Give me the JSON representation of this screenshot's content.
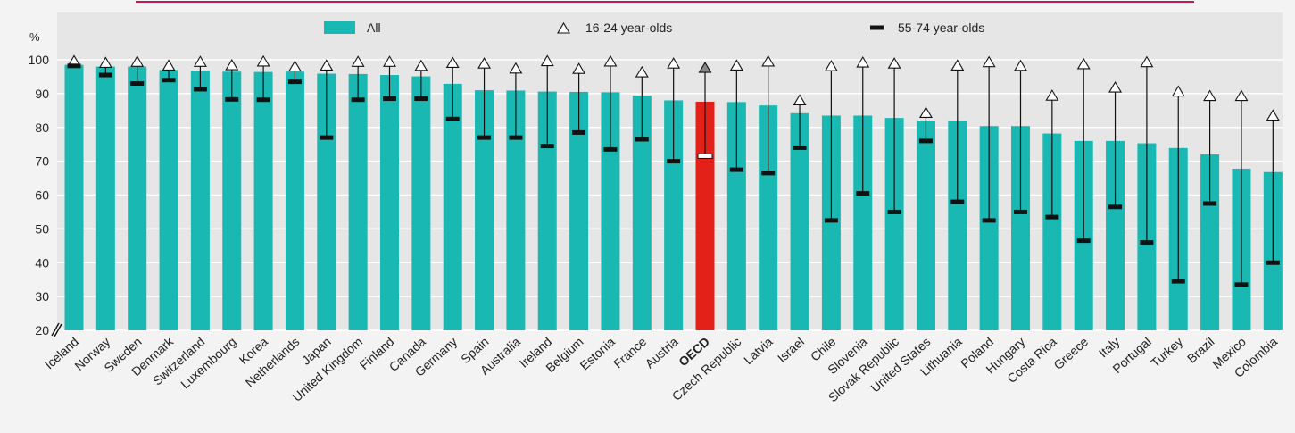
{
  "colors": {
    "all": "#1ab8b2",
    "oecd": "#e32119",
    "whisker": "#111111",
    "background": "#f3f3f3",
    "legend_band": "#e6e6e6",
    "top_rule": "#c2185b",
    "gridline": "#ffffff"
  },
  "chart_data": {
    "type": "bar",
    "ylabel": "%",
    "ylim": [
      20,
      100
    ],
    "yticks": [
      20,
      30,
      40,
      50,
      60,
      70,
      80,
      90,
      100
    ],
    "axis_break": true,
    "grid": true,
    "legend_position": "top",
    "highlight_category": "OECD",
    "categories": [
      "Iceland",
      "Norway",
      "Sweden",
      "Denmark",
      "Switzerland",
      "Luxembourg",
      "Korea",
      "Netherlands",
      "Japan",
      "United Kingdom",
      "Finland",
      "Canada",
      "Germany",
      "Spain",
      "Australia",
      "Ireland",
      "Belgium",
      "Estonia",
      "France",
      "Austria",
      "OECD",
      "Czech Republic",
      "Latvia",
      "Israel",
      "Chile",
      "Slovenia",
      "Slovak Republic",
      "United States",
      "Lithuania",
      "Poland",
      "Hungary",
      "Costa Rica",
      "Greece",
      "Italy",
      "Portugal",
      "Turkey",
      "Brazil",
      "Mexico",
      "Colombia"
    ],
    "series": [
      {
        "name": "All",
        "marker": "bar",
        "values": [
          98.5,
          98,
          98,
          97,
          96.7,
          96.5,
          96.4,
          96.5,
          95.9,
          95.8,
          95.5,
          95.1,
          92.9,
          91,
          90.9,
          90.6,
          90.5,
          90.4,
          89.4,
          88,
          87.6,
          87.5,
          86.5,
          84.2,
          83.5,
          83.5,
          82.8,
          82,
          81.8,
          80.4,
          80.4,
          78.2,
          76,
          76,
          75.3,
          73.9,
          72,
          67.8,
          66.8
        ]
      },
      {
        "name": "16-24 year-olds",
        "marker": "triangle",
        "values": [
          99.6,
          99.1,
          99.4,
          98.3,
          99.4,
          98.4,
          99.5,
          98,
          98.3,
          99.4,
          99.4,
          98.2,
          99.1,
          98.9,
          97.4,
          99.6,
          97.3,
          99.5,
          96.3,
          98.9,
          97.6,
          98.3,
          99.5,
          88,
          98.1,
          99.2,
          98.9,
          84.3,
          98.3,
          99.3,
          98.2,
          89.4,
          98.7,
          91.8,
          99.3,
          90.6,
          89.3,
          89.3,
          83.5
        ]
      },
      {
        "name": "55-74 year-olds",
        "marker": "dash",
        "values": [
          98.2,
          95.5,
          93,
          94,
          91.3,
          88.3,
          88.2,
          93.5,
          77,
          88.2,
          88.5,
          88.5,
          82.5,
          77,
          77,
          74.5,
          78.5,
          73.5,
          76.5,
          70,
          71.5,
          67.5,
          66.5,
          74,
          52.5,
          60.5,
          55,
          76,
          58,
          52.5,
          55,
          53.5,
          46.5,
          56.5,
          46,
          34.5,
          57.5,
          33.5,
          40
        ]
      }
    ]
  },
  "legend": [
    {
      "label": "All",
      "marker": "bar"
    },
    {
      "label": "16-24 year-olds",
      "marker": "triangle"
    },
    {
      "label": "55-74 year-olds",
      "marker": "dash"
    }
  ]
}
